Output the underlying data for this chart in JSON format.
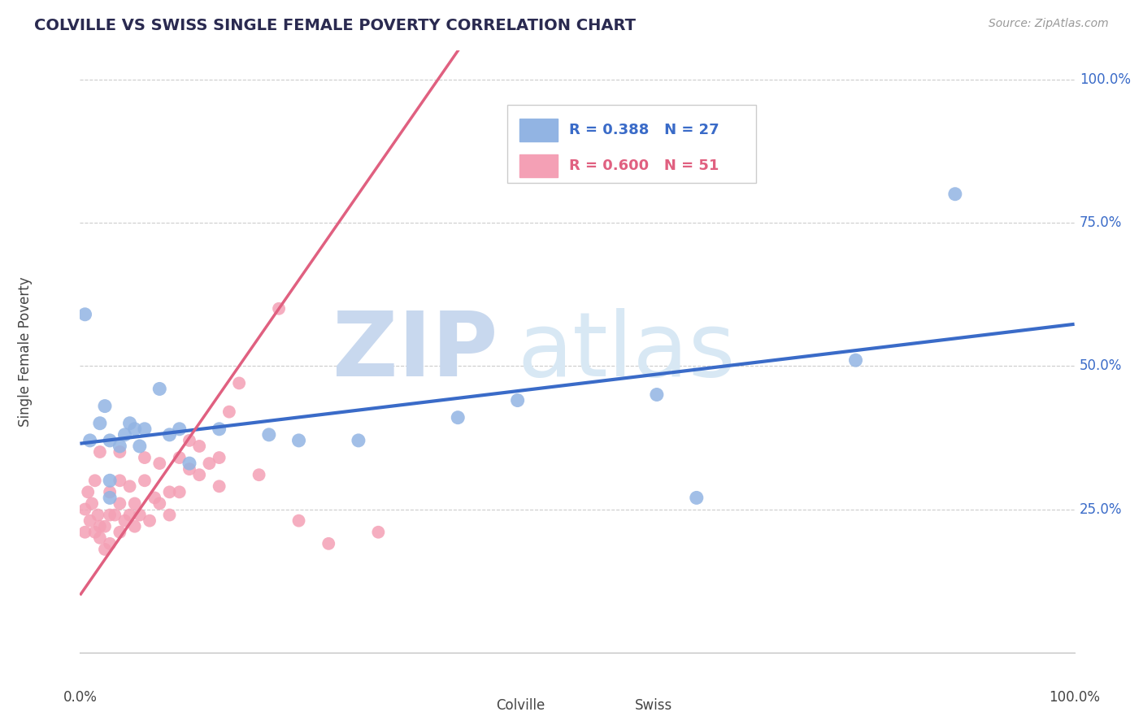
{
  "title": "COLVILLE VS SWISS SINGLE FEMALE POVERTY CORRELATION CHART",
  "source": "Source: ZipAtlas.com",
  "ylabel": "Single Female Poverty",
  "colville_R": 0.388,
  "colville_N": 27,
  "swiss_R": 0.6,
  "swiss_N": 51,
  "colville_color": "#92b4e3",
  "swiss_color": "#f4a0b5",
  "colville_line_color": "#3a6bc8",
  "swiss_line_color": "#e06080",
  "background_color": "#ffffff",
  "grid_color": "#cccccc",
  "colville_x": [
    0.005,
    0.01,
    0.02,
    0.025,
    0.03,
    0.03,
    0.03,
    0.04,
    0.045,
    0.05,
    0.055,
    0.06,
    0.065,
    0.08,
    0.09,
    0.1,
    0.11,
    0.14,
    0.19,
    0.22,
    0.28,
    0.38,
    0.44,
    0.58,
    0.62,
    0.78,
    0.88
  ],
  "colville_y": [
    0.59,
    0.37,
    0.4,
    0.43,
    0.37,
    0.3,
    0.27,
    0.36,
    0.38,
    0.4,
    0.39,
    0.36,
    0.39,
    0.46,
    0.38,
    0.39,
    0.33,
    0.39,
    0.38,
    0.37,
    0.37,
    0.41,
    0.44,
    0.45,
    0.27,
    0.51,
    0.8
  ],
  "swiss_x": [
    0.005,
    0.005,
    0.008,
    0.01,
    0.012,
    0.015,
    0.015,
    0.018,
    0.02,
    0.02,
    0.02,
    0.025,
    0.025,
    0.03,
    0.03,
    0.03,
    0.035,
    0.04,
    0.04,
    0.04,
    0.04,
    0.045,
    0.05,
    0.05,
    0.055,
    0.055,
    0.06,
    0.065,
    0.065,
    0.07,
    0.075,
    0.08,
    0.08,
    0.09,
    0.09,
    0.1,
    0.1,
    0.11,
    0.11,
    0.12,
    0.12,
    0.13,
    0.14,
    0.14,
    0.15,
    0.16,
    0.18,
    0.2,
    0.22,
    0.25,
    0.3
  ],
  "swiss_y": [
    0.21,
    0.25,
    0.28,
    0.23,
    0.26,
    0.21,
    0.3,
    0.24,
    0.2,
    0.22,
    0.35,
    0.18,
    0.22,
    0.19,
    0.24,
    0.28,
    0.24,
    0.21,
    0.26,
    0.3,
    0.35,
    0.23,
    0.24,
    0.29,
    0.22,
    0.26,
    0.24,
    0.3,
    0.34,
    0.23,
    0.27,
    0.26,
    0.33,
    0.24,
    0.28,
    0.28,
    0.34,
    0.32,
    0.37,
    0.31,
    0.36,
    0.33,
    0.29,
    0.34,
    0.42,
    0.47,
    0.31,
    0.6,
    0.23,
    0.19,
    0.21
  ],
  "ytick_labels": [
    "25.0%",
    "50.0%",
    "75.0%",
    "100.0%"
  ],
  "ytick_values": [
    0.25,
    0.5,
    0.75,
    1.0
  ],
  "watermark_zip": "ZIP",
  "watermark_atlas": "atlas",
  "watermark_color": "#dce8f5"
}
